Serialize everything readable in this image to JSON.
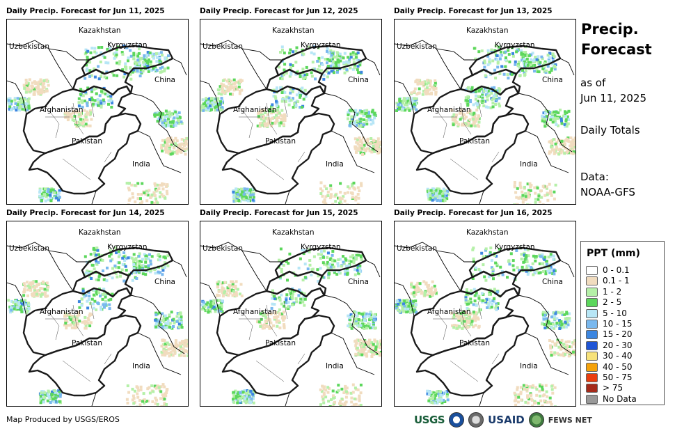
{
  "panels": [
    {
      "title": "Daily Precip. Forecast for Jun 11, 2025"
    },
    {
      "title": "Daily Precip. Forecast for Jun 12, 2025"
    },
    {
      "title": "Daily Precip. Forecast for Jun 13, 2025"
    },
    {
      "title": "Daily Precip. Forecast for Jun 14, 2025"
    },
    {
      "title": "Daily Precip. Forecast for Jun 15, 2025"
    },
    {
      "title": "Daily Precip. Forecast for Jun 16, 2025"
    }
  ],
  "map_labels": {
    "kazakhstan": "Kazakhstan",
    "uzbekistan": "Uzbekistan",
    "kyrgyzstan": "Kyrgyzstan",
    "china": "China",
    "afghanistan": "Afghanistan",
    "pakistan": "Pakistan",
    "india": "India"
  },
  "side": {
    "title_line1": "Precip.",
    "title_line2": "Forecast",
    "asof_line1": "as of",
    "asof_line2": "Jun 11, 2025",
    "totals": "Daily Totals",
    "data_line1": "Data:",
    "data_line2": "NOAA-GFS"
  },
  "legend": {
    "title": "PPT (mm)",
    "items": [
      {
        "label": "0 - 0.1",
        "color": "#ffffff"
      },
      {
        "label": "0.1 - 1",
        "color": "#f1dcbf"
      },
      {
        "label": "1 - 2",
        "color": "#b5f0a8"
      },
      {
        "label": "2 - 5",
        "color": "#5cd75c"
      },
      {
        "label": "5 - 10",
        "color": "#b7e6f6"
      },
      {
        "label": "10 - 15",
        "color": "#79b8ee"
      },
      {
        "label": "15 - 20",
        "color": "#3c86e0"
      },
      {
        "label": "20 - 30",
        "color": "#1f55d6"
      },
      {
        "label": "30 - 40",
        "color": "#f7e27a"
      },
      {
        "label": "40 - 50",
        "color": "#f5a20a"
      },
      {
        "label": "50 - 75",
        "color": "#ea3d0d"
      },
      {
        "label": "> 75",
        "color": "#a52a1a"
      },
      {
        "label": "No Data",
        "color": "#999999"
      }
    ]
  },
  "footer": {
    "credit": "Map Produced by USGS/EROS"
  },
  "logos": {
    "usgs": "USGS",
    "usaid": "USAID",
    "fews": "FEWS NET"
  }
}
